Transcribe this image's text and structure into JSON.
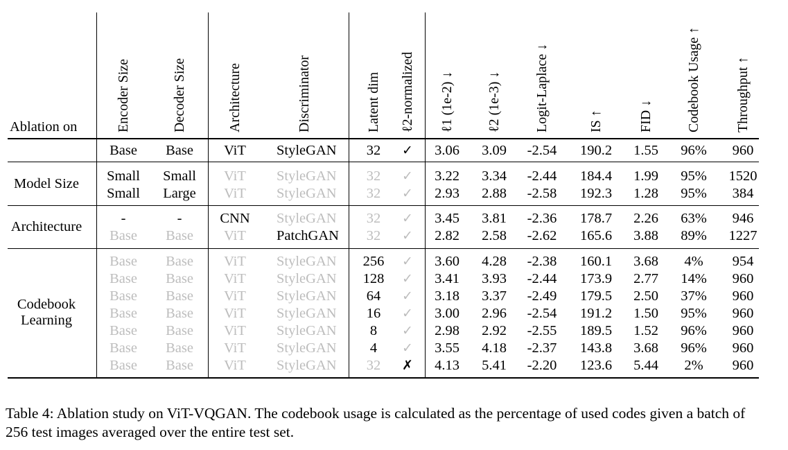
{
  "header": {
    "ablation_on": "Ablation on",
    "columns": [
      "Encoder Size",
      "Decoder Size",
      "Architecture",
      "Discriminator",
      "Latent dim",
      "ℓ2-normalized",
      "ℓ1 (1e-2) ↓",
      "ℓ2 (1e-3) ↓",
      "Logit-Laplace ↓",
      "IS ↑",
      "FID ↓",
      "Codebook Usage ↑",
      "Throughput ↑"
    ]
  },
  "groups": [
    {
      "label": "",
      "rows": [
        [
          "Base",
          "Base",
          "ViT",
          "StyleGAN",
          "32",
          "✓",
          "3.06",
          "3.09",
          "-2.54",
          "190.2",
          "1.55",
          "96%",
          "960"
        ]
      ]
    },
    {
      "label": "Model Size",
      "rows": [
        [
          "Small",
          "Small",
          "ViT",
          "StyleGAN",
          "32",
          "✓",
          "3.22",
          "3.34",
          "-2.44",
          "184.4",
          "1.99",
          "95%",
          "1520"
        ],
        [
          "Small",
          "Large",
          "ViT",
          "StyleGAN",
          "32",
          "✓",
          "2.93",
          "2.88",
          "-2.58",
          "192.3",
          "1.28",
          "95%",
          "384"
        ]
      ]
    },
    {
      "label": "Architecture",
      "rows": [
        [
          "-",
          "-",
          "CNN",
          "StyleGAN",
          "32",
          "✓",
          "3.45",
          "3.81",
          "-2.36",
          "178.7",
          "2.26",
          "63%",
          "946"
        ],
        [
          "Base",
          "Base",
          "ViT",
          "PatchGAN",
          "32",
          "✓",
          "2.82",
          "2.58",
          "-2.62",
          "165.6",
          "3.88",
          "89%",
          "1227"
        ]
      ]
    },
    {
      "label": "Codebook Learning",
      "label_lines": [
        "Codebook",
        "Learning"
      ],
      "rows": [
        [
          "Base",
          "Base",
          "ViT",
          "StyleGAN",
          "256",
          "✓",
          "3.60",
          "4.28",
          "-2.38",
          "160.1",
          "3.68",
          "4%",
          "954"
        ],
        [
          "Base",
          "Base",
          "ViT",
          "StyleGAN",
          "128",
          "✓",
          "3.41",
          "3.93",
          "-2.44",
          "173.9",
          "2.77",
          "14%",
          "960"
        ],
        [
          "Base",
          "Base",
          "ViT",
          "StyleGAN",
          "64",
          "✓",
          "3.18",
          "3.37",
          "-2.49",
          "179.5",
          "2.50",
          "37%",
          "960"
        ],
        [
          "Base",
          "Base",
          "ViT",
          "StyleGAN",
          "16",
          "✓",
          "3.00",
          "2.96",
          "-2.54",
          "191.2",
          "1.50",
          "95%",
          "960"
        ],
        [
          "Base",
          "Base",
          "ViT",
          "StyleGAN",
          "8",
          "✓",
          "2.98",
          "2.92",
          "-2.55",
          "189.5",
          "1.52",
          "96%",
          "960"
        ],
        [
          "Base",
          "Base",
          "ViT",
          "StyleGAN",
          "4",
          "✓",
          "3.55",
          "4.18",
          "-2.37",
          "143.8",
          "3.68",
          "96%",
          "960"
        ],
        [
          "Base",
          "Base",
          "ViT",
          "StyleGAN",
          "32",
          "✗",
          "4.13",
          "5.41",
          "-2.20",
          "123.6",
          "5.44",
          "2%",
          "960"
        ]
      ]
    }
  ],
  "greyed": [
    [],
    [
      2,
      3,
      4,
      5
    ],
    [
      2,
      3,
      4,
      5
    ],
    [
      3,
      4,
      5
    ],
    [
      0,
      1,
      2,
      4,
      5
    ],
    [
      0,
      1,
      2,
      3,
      5
    ],
    [
      0,
      1,
      2,
      3,
      5
    ],
    [
      0,
      1,
      2,
      3,
      5
    ],
    [
      0,
      1,
      2,
      3,
      5
    ],
    [
      0,
      1,
      2,
      3,
      5
    ],
    [
      0,
      1,
      2,
      3,
      5
    ],
    [
      0,
      1,
      2,
      3,
      4
    ]
  ],
  "caption": "Table 4: Ablation study on ViT-VQGAN. The codebook usage is calculated as the percentage of used codes given a batch of 256 test images averaged over the entire test set."
}
